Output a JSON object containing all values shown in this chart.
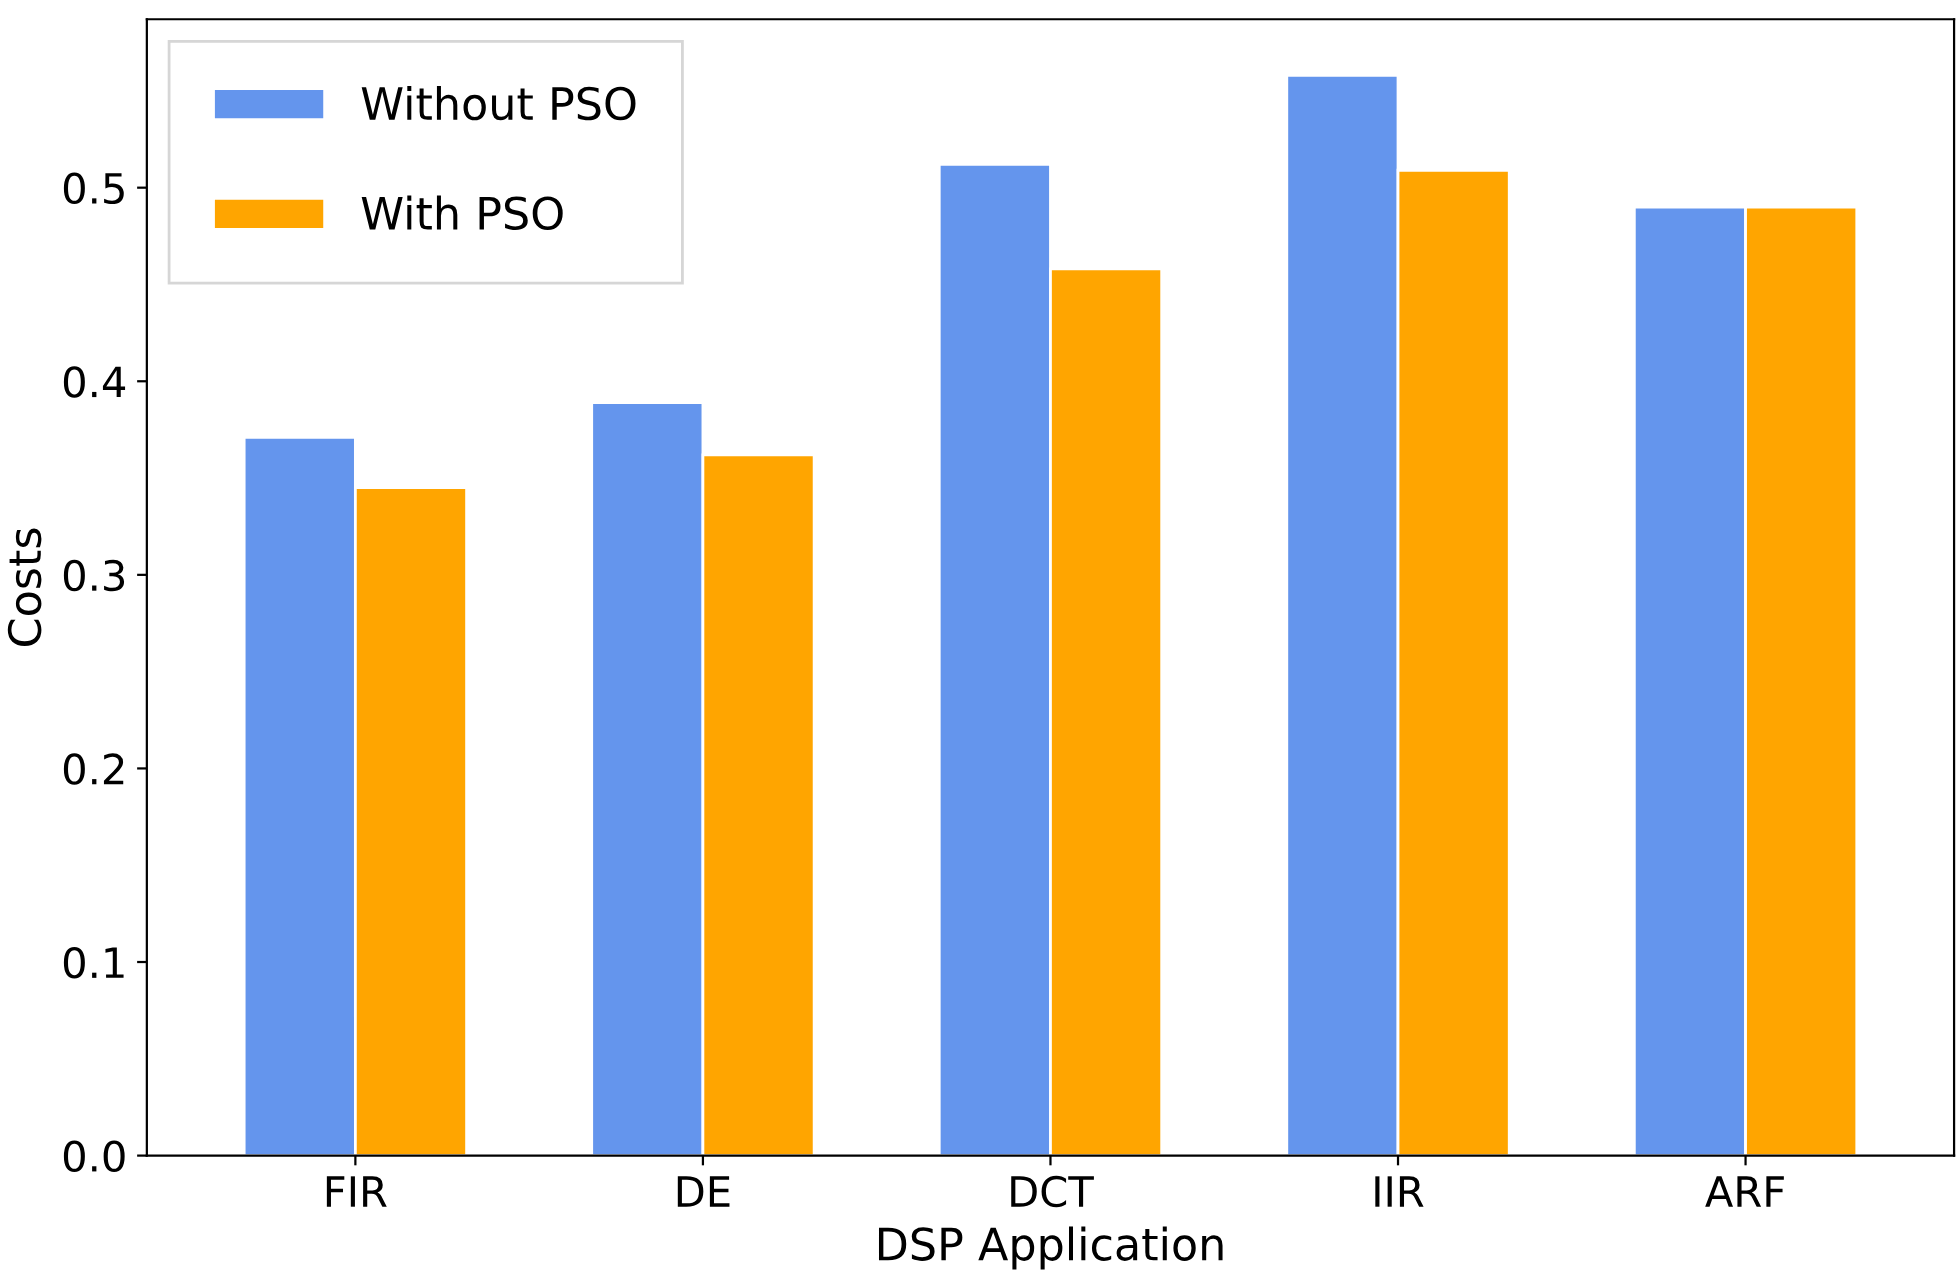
{
  "chart_data": {
    "type": "bar",
    "xlabel": "DSP Application",
    "ylabel": "Costs",
    "categories": [
      "FIR",
      "DE",
      "DCT",
      "IIR",
      "ARF"
    ],
    "series": [
      {
        "name": "Without PSO",
        "color": "#6495ed",
        "values": [
          0.371,
          0.389,
          0.512,
          0.558,
          0.49
        ]
      },
      {
        "name": "With PSO",
        "color": "#ffa500",
        "values": [
          0.345,
          0.362,
          0.458,
          0.509,
          0.49
        ]
      }
    ],
    "ylim": [
      0,
      0.587
    ],
    "yticks": [
      {
        "value": 0,
        "label": "0.0"
      },
      0.1,
      0.2,
      0.3,
      0.4,
      0.5
    ],
    "legend": "top left",
    "grid": false
  }
}
